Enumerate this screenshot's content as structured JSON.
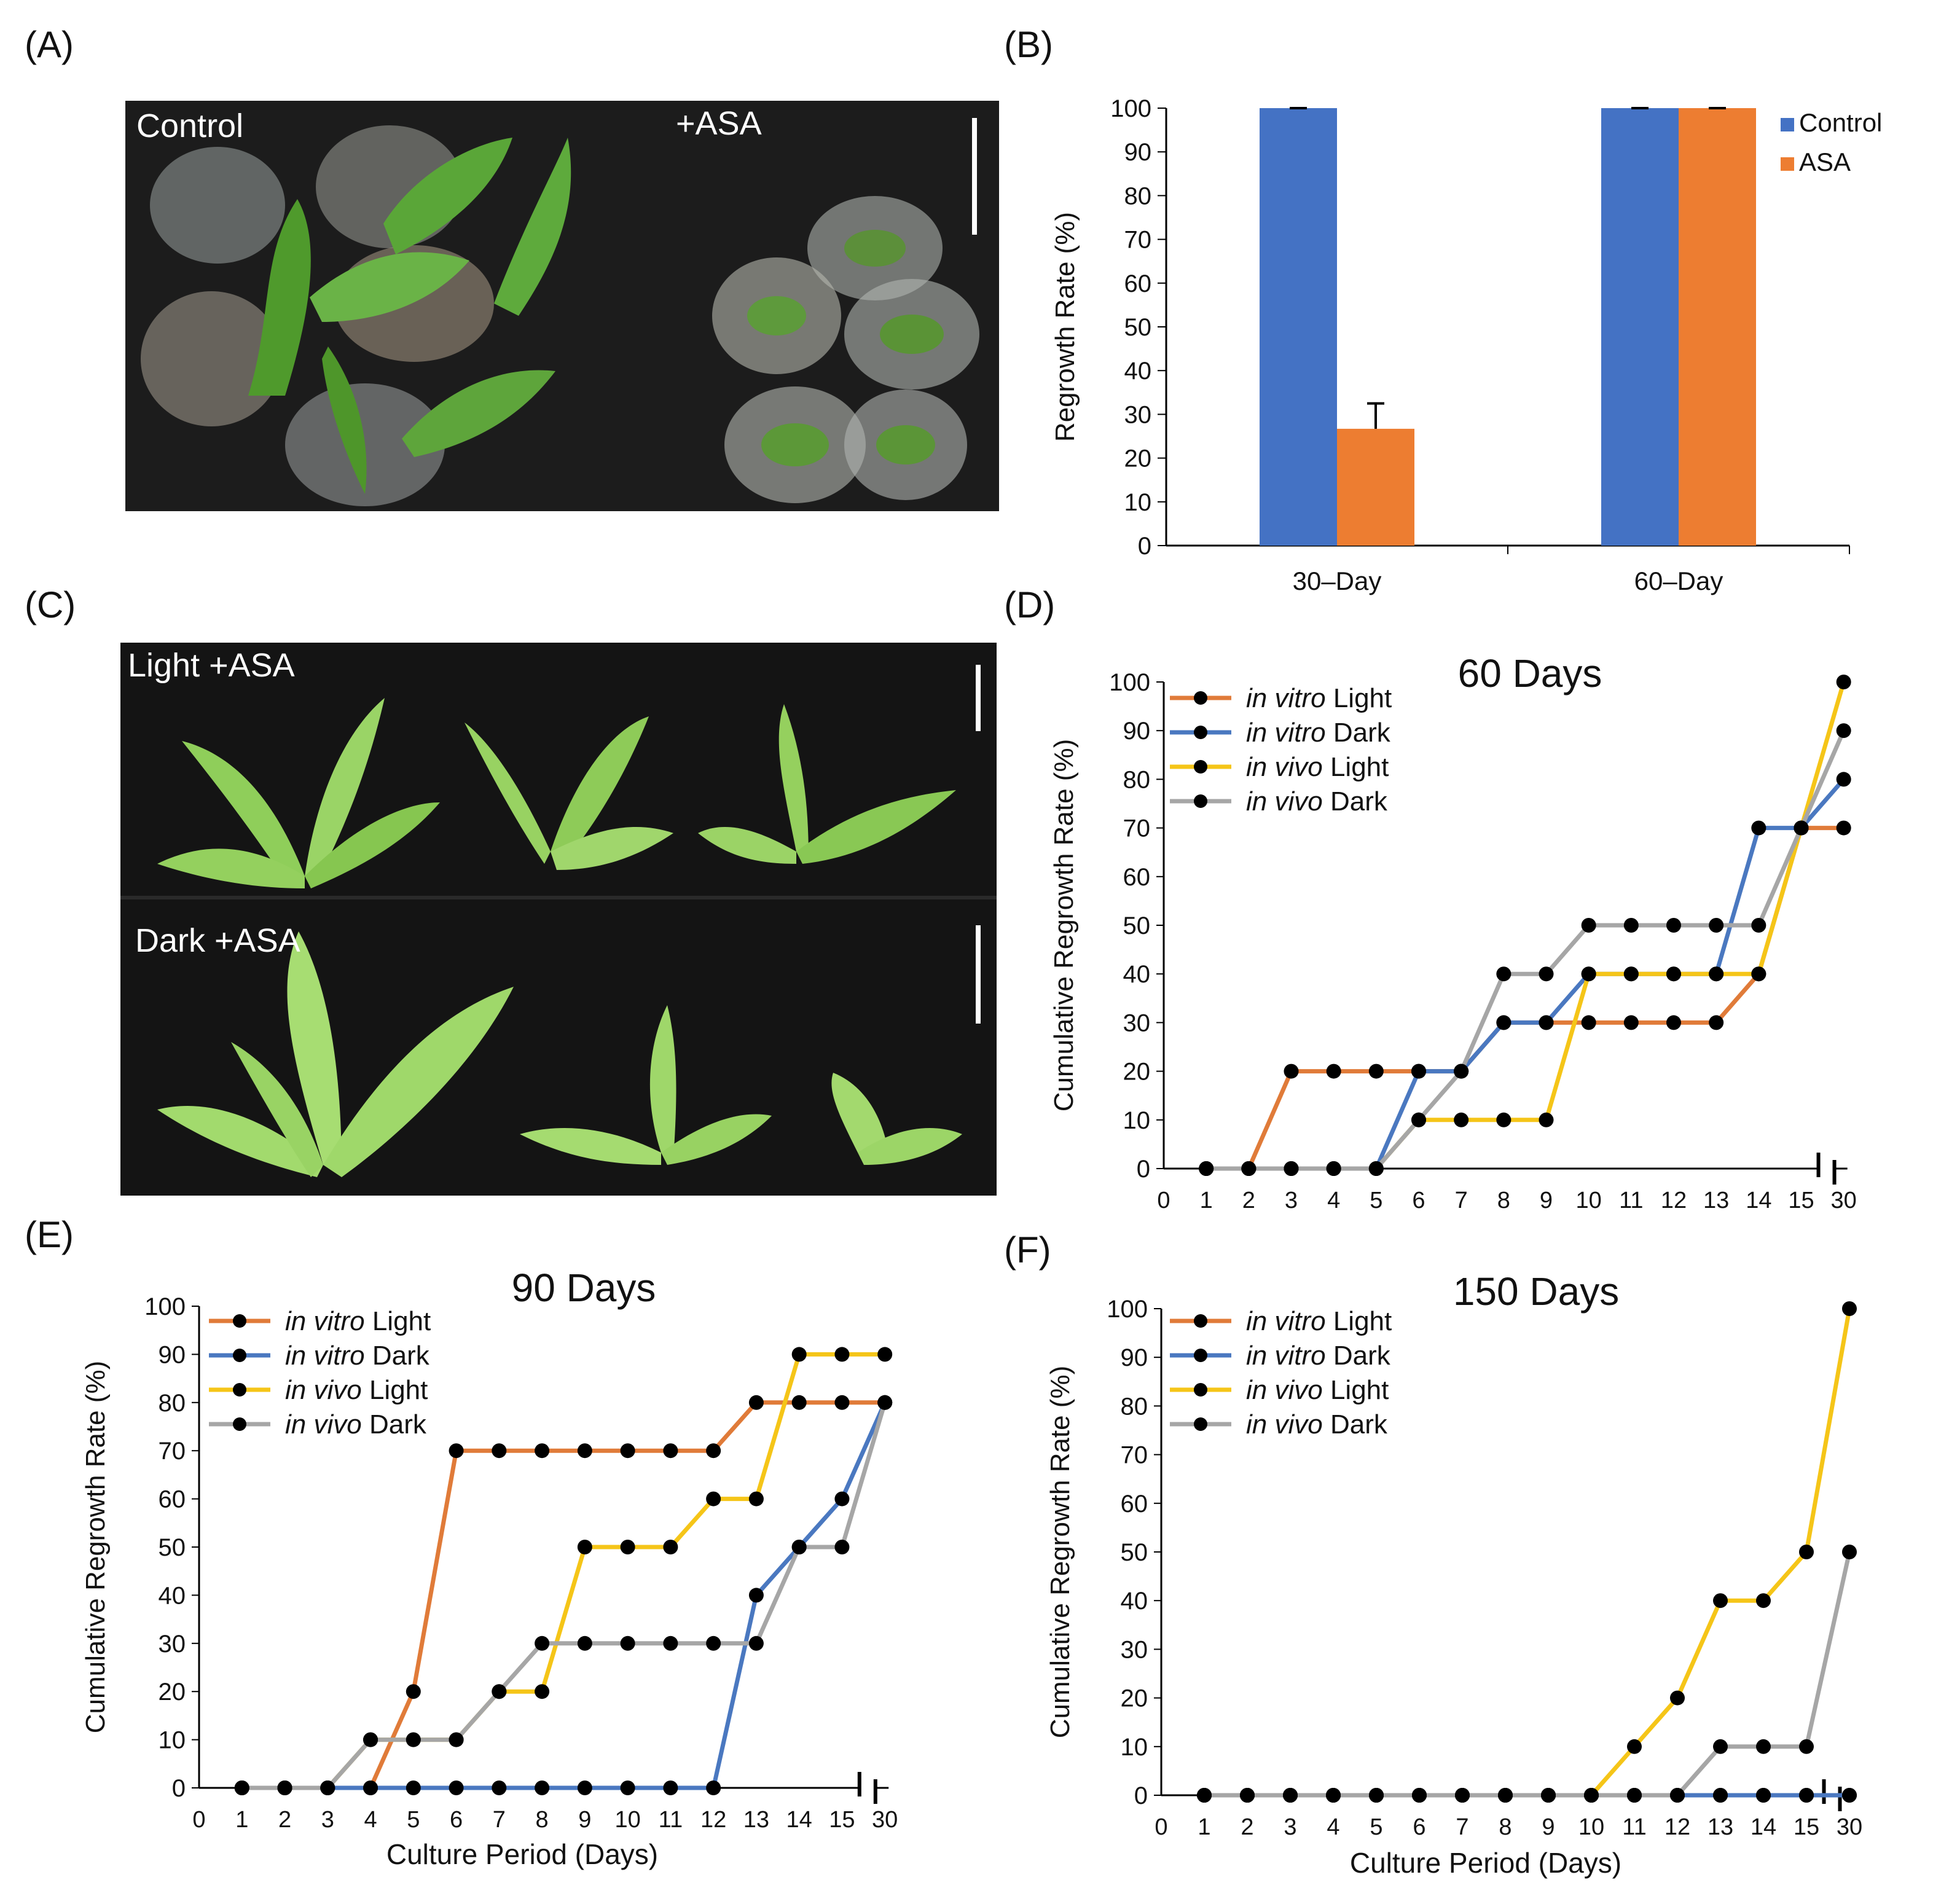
{
  "panels": {
    "A": "(A)",
    "B": "(B)",
    "C": "(C)",
    "D": "(D)",
    "E": "(E)",
    "F": "(F)"
  },
  "photoA": {
    "left_label": "Control",
    "right_label": "+ASA"
  },
  "photoC": {
    "top_label": "Light +ASA",
    "bottom_label": "Dark +ASA"
  },
  "colors": {
    "control": "#4472C4",
    "asa": "#ED7D31",
    "in_vitro_light": "#E07B39",
    "in_vitro_dark": "#4A78C0",
    "in_vivo_light": "#F5C518",
    "in_vivo_dark": "#A6A6A6",
    "marker": "#000000"
  },
  "legend_line": {
    "in_vitro_light": {
      "em": "in vitro",
      "rest": " Light"
    },
    "in_vitro_dark": {
      "em": "in vitro",
      "rest": " Dark"
    },
    "in_vivo_light": {
      "em": "in vivo",
      "rest": " Light"
    },
    "in_vivo_dark": {
      "em": "in vivo",
      "rest": " Dark"
    }
  },
  "chart_data": [
    {
      "id": "B",
      "type": "bar",
      "title": "",
      "categories": [
        "30–Day",
        "60–Day"
      ],
      "series": [
        {
          "name": "Control",
          "values": [
            100,
            100
          ],
          "errors": [
            0,
            0
          ]
        },
        {
          "name": "ASA",
          "values": [
            26.7,
            100
          ],
          "errors": [
            5.8,
            0
          ]
        }
      ],
      "xlabel": "",
      "ylabel": "Regrowth Rate (%)",
      "ylim": [
        0,
        100
      ],
      "yticks": [
        0,
        10,
        20,
        30,
        40,
        50,
        60,
        70,
        80,
        90,
        100
      ],
      "legend": "top-right",
      "grid": false
    },
    {
      "id": "D",
      "type": "line",
      "title": "60 Days",
      "xlabel": "",
      "ylabel": "Cumulative Regrowth Rate (%)",
      "ylim": [
        0,
        100
      ],
      "yticks": [
        0,
        10,
        20,
        30,
        40,
        50,
        60,
        70,
        80,
        90,
        100
      ],
      "xticks": [
        "0",
        "1",
        "2",
        "3",
        "4",
        "5",
        "6",
        "7",
        "8",
        "9",
        "10",
        "11",
        "12",
        "13",
        "14",
        "15",
        "30"
      ],
      "axis_break": "between 15 and 30",
      "legend": "top-left",
      "grid": false,
      "x": [
        "1",
        "2",
        "3",
        "4",
        "5",
        "6",
        "7",
        "8",
        "9",
        "10",
        "11",
        "12",
        "13",
        "14",
        "15",
        "30"
      ],
      "series": [
        {
          "key": "in_vitro_light",
          "values": [
            0,
            0,
            20,
            20,
            20,
            20,
            20,
            30,
            30,
            30,
            30,
            30,
            30,
            40,
            70,
            70
          ]
        },
        {
          "key": "in_vitro_dark",
          "values": [
            0,
            0,
            0,
            0,
            0,
            20,
            20,
            30,
            30,
            40,
            40,
            40,
            40,
            70,
            70,
            80
          ]
        },
        {
          "key": "in_vivo_light",
          "values": [
            0,
            0,
            0,
            0,
            0,
            10,
            10,
            10,
            10,
            40,
            40,
            40,
            40,
            40,
            70,
            100
          ]
        },
        {
          "key": "in_vivo_dark",
          "values": [
            0,
            0,
            0,
            0,
            0,
            10,
            20,
            40,
            40,
            50,
            50,
            50,
            50,
            50,
            70,
            90
          ]
        }
      ]
    },
    {
      "id": "E",
      "type": "line",
      "title": "90 Days",
      "xlabel": "Culture Period (Days)",
      "ylabel": "Cumulative Regrowth Rate (%)",
      "ylim": [
        0,
        100
      ],
      "yticks": [
        0,
        10,
        20,
        30,
        40,
        50,
        60,
        70,
        80,
        90,
        100
      ],
      "xticks": [
        "0",
        "1",
        "2",
        "3",
        "4",
        "5",
        "6",
        "7",
        "8",
        "9",
        "10",
        "11",
        "12",
        "13",
        "14",
        "15",
        "30"
      ],
      "axis_break": "between 15 and 30",
      "legend": "top-left",
      "grid": false,
      "x": [
        "1",
        "2",
        "3",
        "4",
        "5",
        "6",
        "7",
        "8",
        "9",
        "10",
        "11",
        "12",
        "13",
        "14",
        "15",
        "30"
      ],
      "series": [
        {
          "key": "in_vitro_light",
          "values": [
            0,
            0,
            0,
            0,
            20,
            70,
            70,
            70,
            70,
            70,
            70,
            70,
            80,
            80,
            80,
            80
          ]
        },
        {
          "key": "in_vitro_dark",
          "values": [
            0,
            0,
            0,
            0,
            0,
            0,
            0,
            0,
            0,
            0,
            0,
            0,
            40,
            50,
            60,
            80
          ]
        },
        {
          "key": "in_vivo_light",
          "values": [
            0,
            0,
            0,
            10,
            10,
            10,
            20,
            20,
            50,
            50,
            50,
            60,
            60,
            90,
            90,
            90
          ]
        },
        {
          "key": "in_vivo_dark",
          "values": [
            0,
            0,
            0,
            10,
            10,
            10,
            20,
            30,
            30,
            30,
            30,
            30,
            30,
            50,
            50,
            80
          ]
        }
      ]
    },
    {
      "id": "F",
      "type": "line",
      "title": "150 Days",
      "xlabel": "Culture Period (Days)",
      "ylabel": "Cumulative Regrowth Rate (%)",
      "ylim": [
        0,
        100
      ],
      "yticks": [
        0,
        10,
        20,
        30,
        40,
        50,
        60,
        70,
        80,
        90,
        100
      ],
      "xticks": [
        "0",
        "1",
        "2",
        "3",
        "4",
        "5",
        "6",
        "7",
        "8",
        "9",
        "10",
        "11",
        "12",
        "13",
        "14",
        "15",
        "30"
      ],
      "axis_break": "between 15 and 30",
      "legend": "top-left",
      "grid": false,
      "x": [
        "1",
        "2",
        "3",
        "4",
        "5",
        "6",
        "7",
        "8",
        "9",
        "10",
        "11",
        "12",
        "13",
        "14",
        "15",
        "30"
      ],
      "series": [
        {
          "key": "in_vitro_light",
          "values": [
            0,
            0,
            0,
            0,
            0,
            0,
            0,
            0,
            0,
            0,
            0,
            0,
            0,
            0,
            0,
            0
          ]
        },
        {
          "key": "in_vitro_dark",
          "values": [
            0,
            0,
            0,
            0,
            0,
            0,
            0,
            0,
            0,
            0,
            0,
            0,
            0,
            0,
            0,
            0
          ]
        },
        {
          "key": "in_vivo_light",
          "values": [
            0,
            0,
            0,
            0,
            0,
            0,
            0,
            0,
            0,
            0,
            10,
            20,
            40,
            40,
            50,
            100
          ]
        },
        {
          "key": "in_vivo_dark",
          "values": [
            0,
            0,
            0,
            0,
            0,
            0,
            0,
            0,
            0,
            0,
            0,
            0,
            10,
            10,
            10,
            50
          ]
        }
      ]
    }
  ]
}
